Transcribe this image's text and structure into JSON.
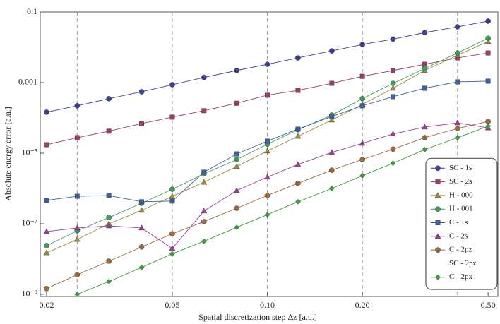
{
  "chart_data": {
    "type": "line",
    "xlabel": "Spatial discretization step Δz  [a.u.]",
    "ylabel": "Absolute energy error [a.u.]",
    "xscale": "log",
    "yscale": "log",
    "xlim": [
      0.0191,
      0.537
    ],
    "ylim": [
      8.7e-10,
      0.1
    ],
    "xticks": [
      0.02,
      0.05,
      {
        "value": 0.1,
        "label": "0.10"
      },
      {
        "value": 0.2,
        "label": "0.20"
      },
      {
        "value": 0.5,
        "label": "0.50"
      }
    ],
    "yticks": [
      0.1,
      0.001,
      {
        "value": 1e-05,
        "label": "10⁻⁵"
      },
      {
        "value": 1e-07,
        "label": "10⁻⁷"
      },
      {
        "value": 1e-09,
        "label": "10⁻⁹"
      }
    ],
    "xgrid": [
      0.025,
      0.05,
      0.1,
      0.2,
      0.4
    ],
    "legend": "lower right",
    "x": [
      0.02,
      0.025,
      0.0315,
      0.04,
      0.05,
      0.063,
      0.08,
      0.1,
      0.125,
      0.16,
      0.2,
      0.25,
      0.315,
      0.4,
      0.5
    ],
    "series": [
      {
        "name": "SC - 1s",
        "color": "#3f3f96",
        "marker": "circle",
        "values": [
          0.000145,
          0.00022,
          0.00035,
          0.00055,
          0.00087,
          0.0014,
          0.0022,
          0.0033,
          0.005,
          0.0079,
          0.012,
          0.017,
          0.026,
          0.038,
          0.055
        ]
      },
      {
        "name": "SC - 2s",
        "color": "#993f6b",
        "marker": "square",
        "values": [
          1.74e-05,
          2.75e-05,
          4.2e-05,
          6.9e-05,
          0.000105,
          0.00016,
          0.00026,
          0.00044,
          0.0006,
          0.00095,
          0.0015,
          0.0022,
          0.0033,
          0.005,
          0.0069
        ]
      },
      {
        "name": "H - 000",
        "color": "#9a8c40",
        "marker": "triangle",
        "values": [
          1.5e-08,
          3.6e-08,
          1e-07,
          2.4e-07,
          6e-07,
          1.5e-06,
          4.2e-06,
          1.15e-05,
          3e-05,
          8.7e-05,
          0.00024,
          0.00069,
          0.0022,
          0.006,
          0.0145
        ]
      },
      {
        "name": "H - 001",
        "color": "#3f9a5c",
        "marker": "circle",
        "values": [
          2.4e-08,
          6.3e-08,
          1.5e-07,
          3.8e-07,
          9.5e-07,
          2.6e-06,
          6.6e-06,
          1.8e-05,
          4.6e-05,
          0.00012,
          0.00035,
          0.00095,
          0.0025,
          0.0069,
          0.018
        ]
      },
      {
        "name": "C - 1s",
        "color": "#3f5f9a",
        "marker": "square",
        "values": [
          4.6e-07,
          6e-07,
          6.3e-07,
          4.2e-07,
          4.4e-07,
          2.9e-06,
          9.5e-06,
          2.2e-05,
          4.8e-05,
          0.00011,
          0.00022,
          0.0004,
          0.00069,
          0.00105,
          0.0011
        ]
      },
      {
        "name": "C - 2s",
        "color": "#9a3f9a",
        "marker": "triangle",
        "values": [
          6e-08,
          7.6e-08,
          8.7e-08,
          7.6e-08,
          2e-08,
          2.3e-07,
          8.7e-07,
          2.1e-06,
          4.8e-06,
          1.05e-05,
          1.9e-05,
          3.5e-05,
          5.5e-05,
          7.2e-05,
          5.2e-05
        ]
      },
      {
        "name": "C - 2pz",
        "color": "#9a6a3f",
        "marker": "circle",
        "values": [
          1.45e-09,
          3.6e-09,
          8.7e-09,
          2.2e-08,
          5.2e-08,
          1.15e-07,
          2.75e-07,
          6.3e-07,
          1.4e-06,
          3.3e-06,
          6.6e-06,
          1.3e-05,
          2.75e-05,
          5e-05,
          7.9e-05
        ]
      },
      {
        "name": "SC - 2pz",
        "color": null,
        "marker": null,
        "values": [
          null,
          null,
          null,
          null,
          null,
          null,
          null,
          null,
          null,
          null,
          null,
          null,
          null,
          null,
          null
        ]
      },
      {
        "name": "C - 2px",
        "color": "#3f9a3f",
        "marker": "diamond",
        "values": [
          null,
          1e-09,
          2.3e-09,
          5.8e-09,
          1.4e-08,
          3.2e-08,
          7.9e-08,
          1.8e-07,
          4.2e-07,
          1e-06,
          2.3e-06,
          5.2e-06,
          1.26e-05,
          2.75e-05,
          5.8e-05
        ]
      }
    ]
  }
}
